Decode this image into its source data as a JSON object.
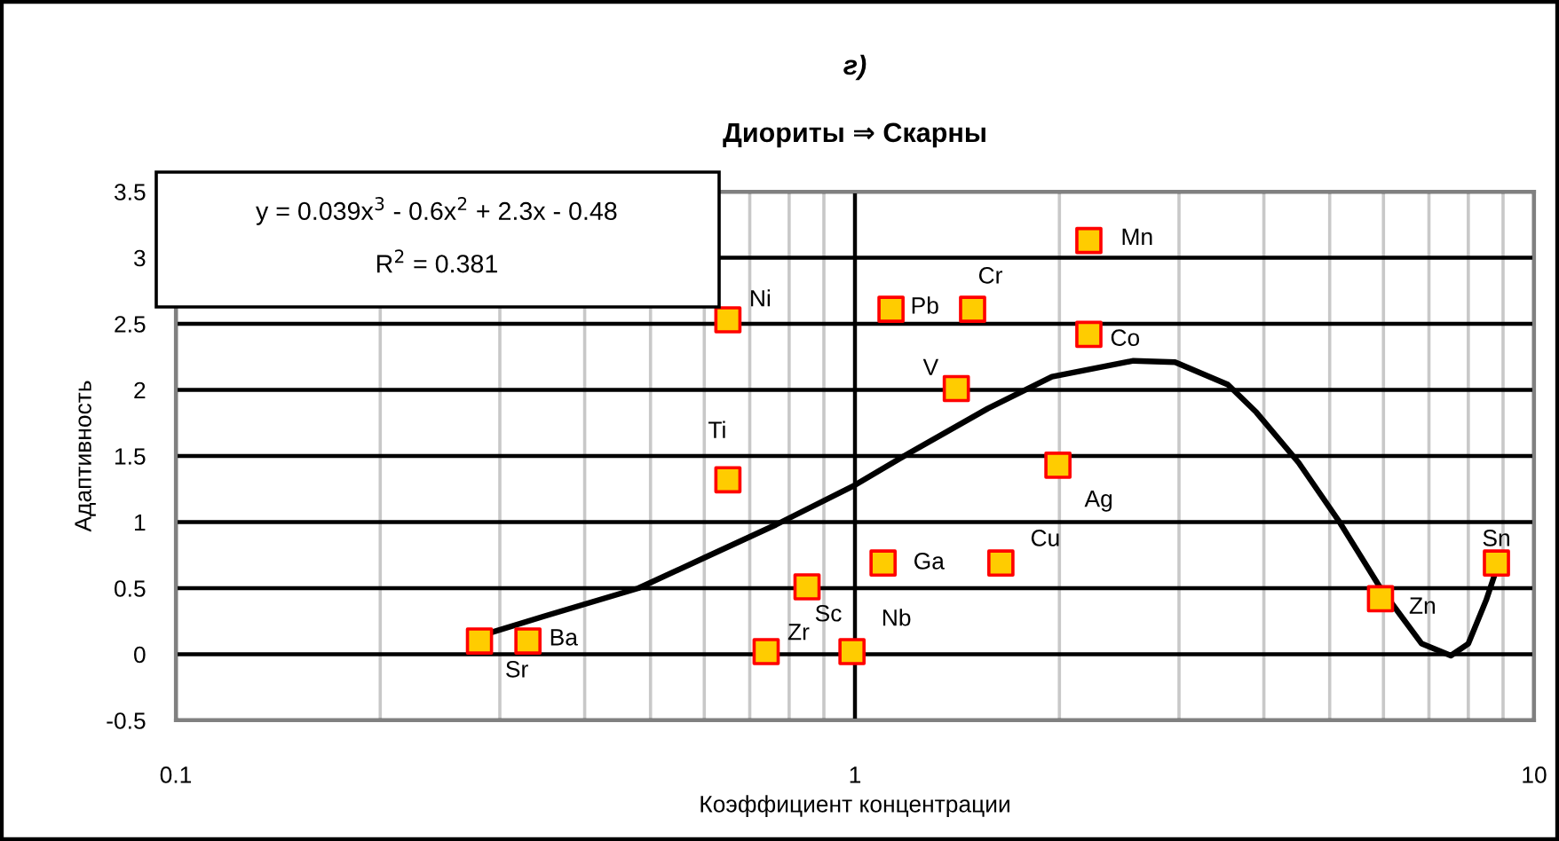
{
  "chart_data": {
    "type": "scatter",
    "title": "г)",
    "subtitle": "Диориты ⇒ Скарны",
    "xlabel": "Коэффициент концентрации",
    "ylabel": "Адаптивность",
    "log": "x",
    "xlim": [
      0.1,
      10
    ],
    "ylim": [
      -0.5,
      3.5
    ],
    "xticks": [
      0.1,
      {
        "value": 0.2,
        "label": null
      },
      {
        "value": 0.3,
        "label": null
      },
      {
        "value": 0.4,
        "label": null
      },
      {
        "value": 0.5,
        "label": null
      },
      {
        "value": 0.6,
        "label": null
      },
      {
        "value": 0.7,
        "label": null
      },
      {
        "value": 0.8,
        "label": null
      },
      {
        "value": 0.9,
        "label": null
      },
      1,
      {
        "value": 2,
        "label": null
      },
      {
        "value": 3,
        "label": null
      },
      {
        "value": 4,
        "label": null
      },
      {
        "value": 5,
        "label": null
      },
      {
        "value": 6,
        "label": null
      },
      {
        "value": 7,
        "label": null
      },
      {
        "value": 8,
        "label": null
      },
      {
        "value": 9,
        "label": null
      },
      10
    ],
    "yticks": [
      -0.5,
      0,
      0.5,
      1,
      1.5,
      2,
      2.5,
      3,
      3.5
    ],
    "grid": true,
    "series": [
      {
        "color": "#ffcc00",
        "marker": "square",
        "x": [
          0.28,
          0.33,
          0.65,
          0.65,
          0.74,
          0.85,
          0.99,
          1.1,
          1.64,
          1.99,
          5.94,
          8.8,
          1.13,
          1.49,
          2.21,
          2.21,
          1.41
        ],
        "values": [
          0.1,
          0.1,
          1.32,
          2.53,
          0.02,
          0.51,
          0.02,
          0.69,
          0.69,
          1.43,
          0.42,
          0.69,
          2.61,
          2.61,
          3.13,
          2.42,
          2.01
        ]
      },
      {
        "type": "line",
        "color": "#000000",
        "marker": "none",
        "line_style": "solid",
        "x": [
          0.281,
          0.35,
          0.48,
          0.6,
          0.765,
          1.0,
          1.2,
          1.57,
          1.95,
          2.57,
          2.96,
          3.54,
          3.9,
          4.5,
          5.17,
          5.94,
          6.83,
          7.54,
          8.0,
          8.5,
          8.81
        ],
        "values": [
          0.14,
          0.29,
          0.5,
          0.73,
          0.98,
          1.28,
          1.52,
          1.86,
          2.1,
          2.22,
          2.21,
          2.04,
          1.83,
          1.45,
          1.0,
          0.5,
          0.08,
          -0.01,
          0.08,
          0.41,
          0.65
        ]
      }
    ],
    "annotations": [
      "y = 0.039x$^{3}$ - 0.6x$^{2}$ + 2.3x - 0.48",
      "R$^{2}$ = 0.381",
      {
        "text": "Sr",
        "x": 0.28,
        "y": 0.1
      },
      {
        "text": "Ba",
        "x": 0.33,
        "y": 0.1
      },
      {
        "text": "Ti",
        "x": 0.65,
        "y": 1.32
      },
      {
        "text": "Ni",
        "x": 0.65,
        "y": 2.53
      },
      {
        "text": "Zr",
        "x": 0.74,
        "y": 0.02
      },
      {
        "text": "Sc",
        "x": 0.85,
        "y": 0.51
      },
      {
        "text": "Nb",
        "x": 0.99,
        "y": 0.02
      },
      {
        "text": "Ga",
        "x": 1.1,
        "y": 0.69
      },
      {
        "text": "Cu",
        "x": 1.64,
        "y": 0.69
      },
      {
        "text": "Ag",
        "x": 1.99,
        "y": 1.43
      },
      {
        "text": "Zn",
        "x": 5.94,
        "y": 0.42
      },
      {
        "text": "Sn",
        "x": 8.8,
        "y": 0.69
      },
      {
        "text": "Pb",
        "x": 1.13,
        "y": 2.61
      },
      {
        "text": "Cr",
        "x": 1.49,
        "y": 2.61
      },
      {
        "text": "Mn",
        "x": 2.21,
        "y": 3.13
      },
      {
        "text": "Co",
        "x": 2.21,
        "y": 2.42
      },
      {
        "text": "V",
        "x": 1.41,
        "y": 2.01
      }
    ]
  }
}
